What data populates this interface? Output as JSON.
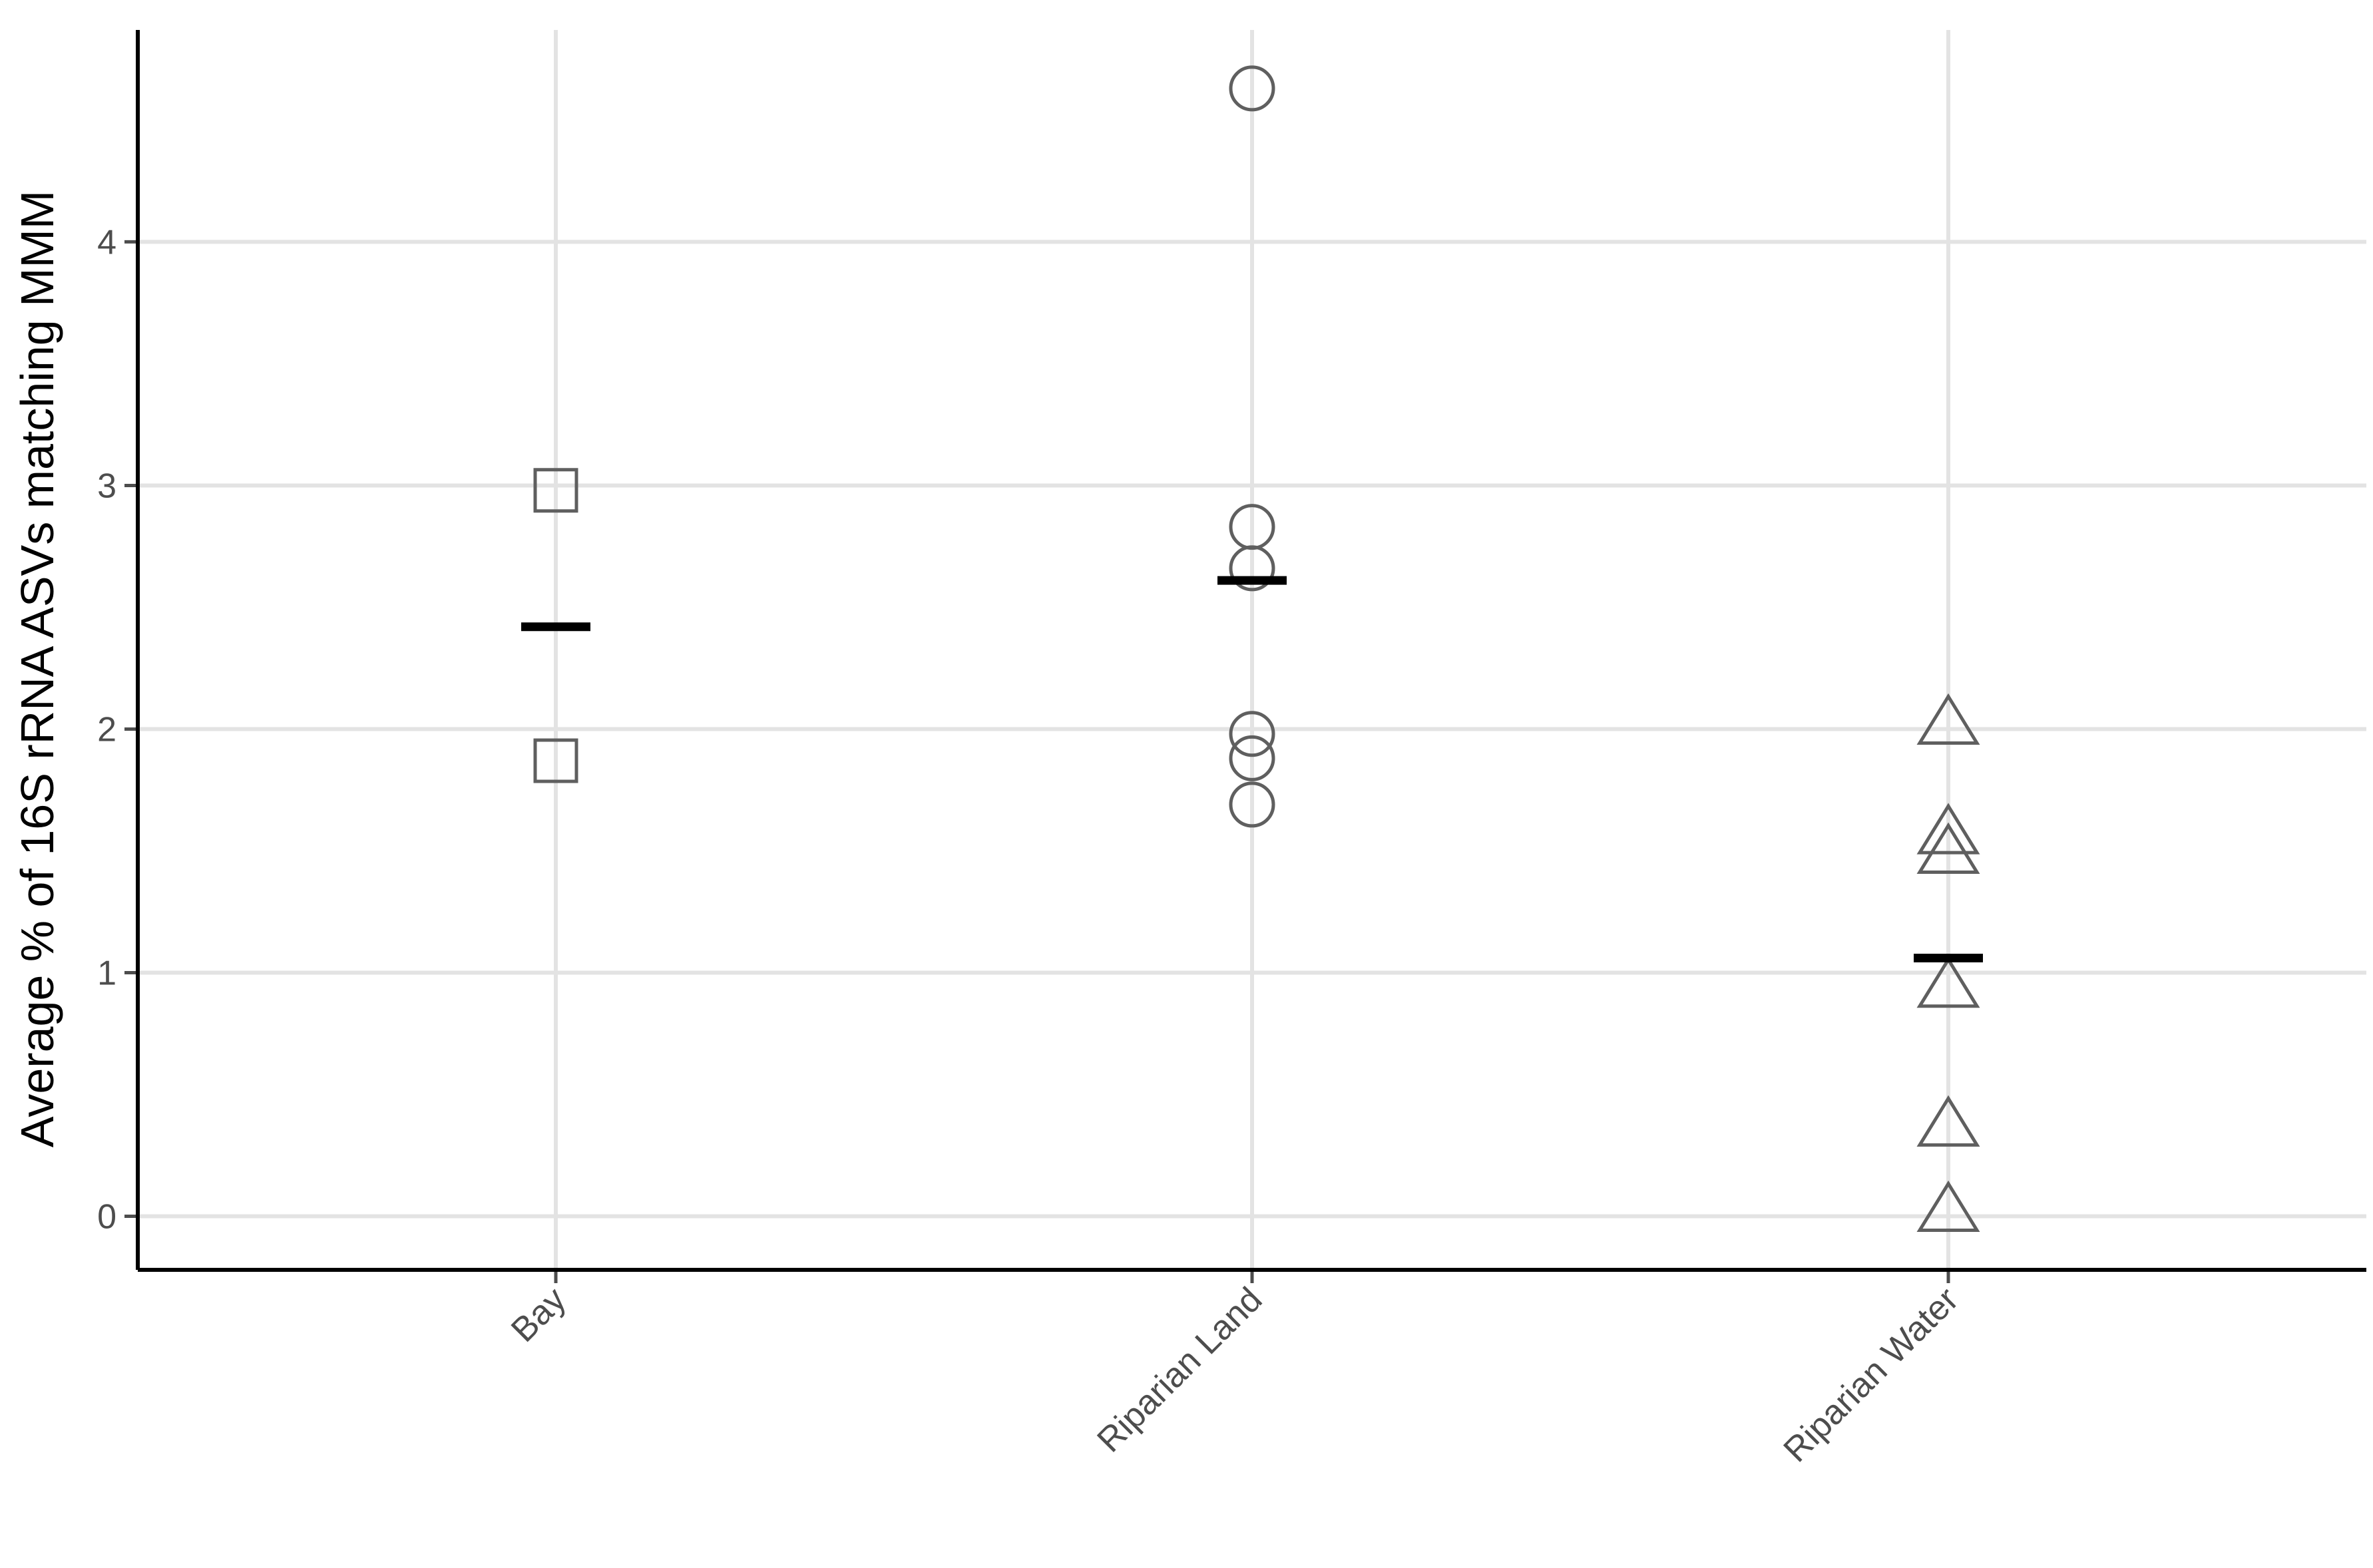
{
  "chart_data": {
    "type": "scatter",
    "title": "",
    "xlabel": "",
    "ylabel": "Average % of 16S rRNA ASVs matching MMM",
    "categories": [
      "Bay",
      "Riparian Land",
      "Riparian Water"
    ],
    "yticks": [
      0,
      1,
      2,
      3,
      4
    ],
    "ylim": [
      -0.22,
      4.87
    ],
    "grid": true,
    "legend": "none",
    "series": [
      {
        "category": "Bay",
        "shape": "square",
        "values": [
          2.98,
          1.87
        ],
        "mean": 2.42
      },
      {
        "category": "Riparian Land",
        "shape": "circle",
        "values": [
          4.63,
          2.83,
          2.66,
          1.98,
          1.88,
          1.69
        ],
        "mean": 2.61
      },
      {
        "category": "Riparian Water",
        "shape": "triangle",
        "values": [
          2.03,
          1.58,
          1.5,
          0.95,
          0.38,
          0.03
        ],
        "mean": 1.06
      }
    ],
    "colors": {
      "marker": "#5f5f5f",
      "mean": "#000000",
      "grid": "#e3e3e3",
      "axis": "#000000",
      "tick_label": "#4d4d4d"
    }
  }
}
